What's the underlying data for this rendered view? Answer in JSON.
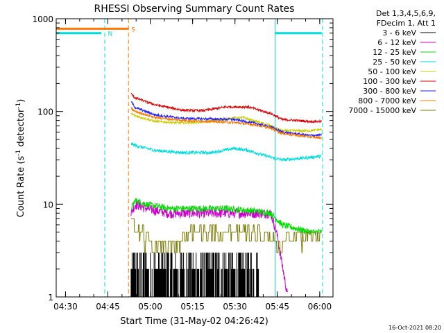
{
  "chart_data": {
    "type": "line",
    "title": "RHESSI Observing Summary Count Rates",
    "xlabel": "Start Time (31-May-02 04:26:42)",
    "ylabel_parts": [
      "Count Rate (s",
      "-1",
      " detector",
      "-1",
      ")"
    ],
    "yscale": "log",
    "ylim": [
      1,
      1000
    ],
    "xlim_minutes": [
      0,
      98
    ],
    "x_ticks": [
      {
        "label": "04:30",
        "t": 3.3
      },
      {
        "label": "04:45",
        "t": 18.3
      },
      {
        "label": "05:00",
        "t": 33.3
      },
      {
        "label": "05:15",
        "t": 48.3
      },
      {
        "label": "05:30",
        "t": 63.3
      },
      {
        "label": "05:45",
        "t": 78.3
      },
      {
        "label": "06:00",
        "t": 93.3
      }
    ],
    "y_ticks": [
      {
        "label": "1",
        "v": 1
      },
      {
        "label": "10",
        "v": 10
      },
      {
        "label": "100",
        "v": 100
      },
      {
        "label": "1000",
        "v": 1000
      }
    ],
    "legend_header": [
      "Det 1,3,4,5,6,9,",
      "FDecim 1, Att 1"
    ],
    "series": [
      {
        "name": "3 - 6 keV",
        "color": "#000000",
        "points": [
          [
            26.5,
            1
          ],
          [
            27,
            3
          ],
          [
            30,
            3
          ],
          [
            35,
            2
          ],
          [
            40,
            2
          ],
          [
            45,
            2
          ],
          [
            50,
            2
          ],
          [
            55,
            2
          ],
          [
            60,
            2
          ],
          [
            65,
            2
          ],
          [
            70,
            2
          ],
          [
            72,
            1
          ]
        ],
        "noise": "spiky"
      },
      {
        "name": "6 - 12 keV",
        "color": "#cc00cc",
        "points": [
          [
            26.5,
            8
          ],
          [
            28,
            10
          ],
          [
            32,
            9
          ],
          [
            40,
            8
          ],
          [
            50,
            8
          ],
          [
            60,
            8
          ],
          [
            70,
            8
          ],
          [
            76,
            8
          ],
          [
            78,
            5
          ],
          [
            82,
            1
          ]
        ],
        "noise": 0.12
      },
      {
        "name": "12 - 25 keV",
        "color": "#00dd00",
        "points": [
          [
            26.5,
            9
          ],
          [
            28,
            11
          ],
          [
            32,
            10
          ],
          [
            40,
            9
          ],
          [
            50,
            9
          ],
          [
            60,
            9
          ],
          [
            70,
            8.5
          ],
          [
            76,
            8
          ],
          [
            80,
            6
          ],
          [
            90,
            5
          ],
          [
            94,
            5
          ]
        ],
        "noise": 0.08
      },
      {
        "name": "25 - 50 keV",
        "color": "#00dddd",
        "points": [
          [
            26.5,
            45
          ],
          [
            28,
            43
          ],
          [
            35,
            38
          ],
          [
            45,
            36
          ],
          [
            55,
            36
          ],
          [
            63,
            40
          ],
          [
            68,
            38
          ],
          [
            76,
            32
          ],
          [
            80,
            30
          ],
          [
            90,
            32
          ],
          [
            94,
            33
          ]
        ],
        "noise": 0.04
      },
      {
        "name": "50 - 100 keV",
        "color": "#cccc00",
        "points": [
          [
            26.5,
            95
          ],
          [
            28,
            90
          ],
          [
            35,
            78
          ],
          [
            45,
            75
          ],
          [
            55,
            78
          ],
          [
            62,
            85
          ],
          [
            66,
            86
          ],
          [
            76,
            70
          ],
          [
            80,
            62
          ],
          [
            90,
            62
          ],
          [
            94,
            64
          ]
        ],
        "noise": 0.03
      },
      {
        "name": "100 - 300 keV",
        "color": "#dd0000",
        "points": [
          [
            26.5,
            155
          ],
          [
            28,
            140
          ],
          [
            35,
            118
          ],
          [
            45,
            103
          ],
          [
            52,
            102
          ],
          [
            60,
            112
          ],
          [
            68,
            112
          ],
          [
            76,
            95
          ],
          [
            80,
            82
          ],
          [
            90,
            78
          ],
          [
            94,
            78
          ]
        ],
        "noise": 0.03
      },
      {
        "name": "300 - 800 keV",
        "color": "#1d1dff",
        "points": [
          [
            26.5,
            128
          ],
          [
            28,
            110
          ],
          [
            35,
            92
          ],
          [
            45,
            84
          ],
          [
            55,
            83
          ],
          [
            63,
            82
          ],
          [
            70,
            75
          ],
          [
            76,
            68
          ],
          [
            80,
            60
          ],
          [
            90,
            55
          ],
          [
            94,
            56
          ]
        ],
        "noise": 0.03
      },
      {
        "name": "800 - 7000 keV",
        "color": "#ff7700",
        "points": [
          [
            26.5,
            108
          ],
          [
            28,
            100
          ],
          [
            35,
            86
          ],
          [
            45,
            80
          ],
          [
            55,
            78
          ],
          [
            63,
            76
          ],
          [
            70,
            72
          ],
          [
            76,
            66
          ],
          [
            80,
            58
          ],
          [
            90,
            53
          ],
          [
            94,
            52
          ]
        ],
        "noise": 0.03
      },
      {
        "name": "7000 - 15000 keV",
        "color": "#7a7a00",
        "points": [
          [
            26.5,
            7
          ],
          [
            28,
            6
          ],
          [
            32,
            4
          ],
          [
            36,
            3.5
          ],
          [
            42,
            4
          ],
          [
            48,
            5
          ],
          [
            55,
            5
          ],
          [
            60,
            5
          ],
          [
            65,
            5
          ],
          [
            70,
            5
          ],
          [
            76,
            4.5
          ],
          [
            80,
            4
          ],
          [
            90,
            4.5
          ],
          [
            94,
            5
          ]
        ],
        "noise": "steps"
      }
    ],
    "state_bars": [
      {
        "label": "N",
        "color": "#00dddd",
        "v": 700,
        "segments": [
          [
            0,
            16
          ],
          [
            77.5,
            94
          ]
        ],
        "label_t": 18.3
      },
      {
        "label": "S",
        "color": "#ff7700",
        "v": 780,
        "segments": [
          [
            0,
            25.5
          ]
        ],
        "label_t": 26.6
      }
    ],
    "event_lines": [
      {
        "color": "#00dddd",
        "style": "solid",
        "t": 0
      },
      {
        "color": "#00dddd",
        "style": "dashed",
        "t": 17.2
      },
      {
        "color": "#ff7700",
        "style": "dashed",
        "t": 25.6
      },
      {
        "color": "#00dddd",
        "style": "solid",
        "t": 77.5
      },
      {
        "color": "#00dddd",
        "style": "dashed",
        "t": 94.3
      }
    ],
    "footer_date": "16-Oct-2021 08:20"
  }
}
